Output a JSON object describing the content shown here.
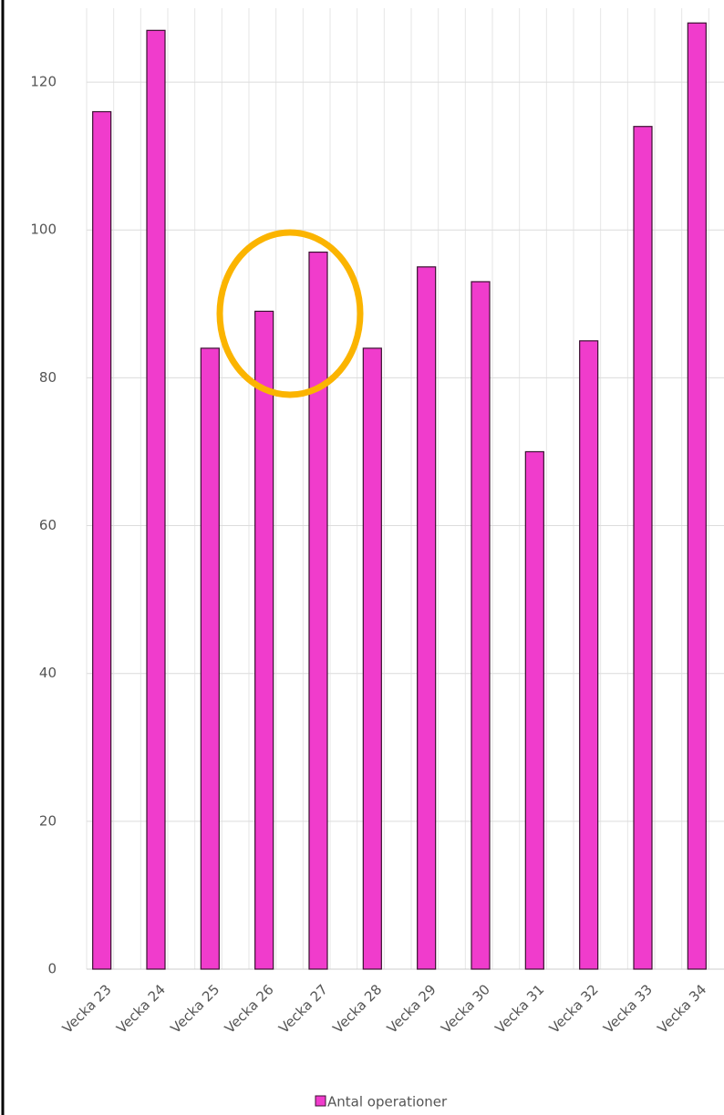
{
  "chart_data": {
    "type": "bar",
    "categories": [
      "Vecka 23",
      "Vecka 24",
      "Vecka 25",
      "Vecka 26",
      "Vecka 27",
      "Vecka 28",
      "Vecka 29",
      "Vecka 30",
      "Vecka 31",
      "Vecka 32",
      "Vecka 33",
      "Vecka 34"
    ],
    "series": [
      {
        "name": "Antal operationer",
        "color": "#f03ccc",
        "values": [
          116,
          127,
          84,
          89,
          97,
          84,
          95,
          93,
          70,
          85,
          114,
          128
        ]
      }
    ],
    "ylim": [
      0,
      130
    ],
    "yticks": [
      0,
      20,
      40,
      60,
      80,
      100,
      120
    ],
    "grid": true,
    "legend": "bottom"
  }
}
